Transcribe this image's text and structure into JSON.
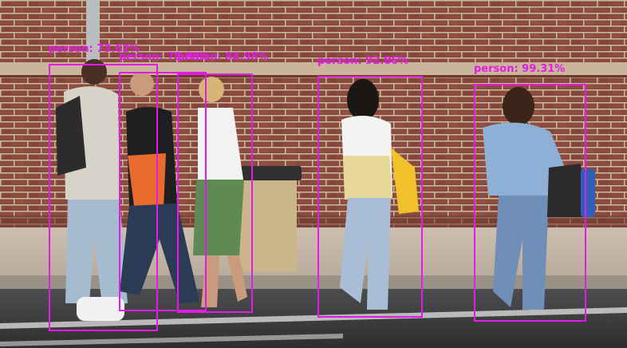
{
  "detections": [
    {
      "label": "person: 73.62%",
      "color": "#e21ce6"
    },
    {
      "label": "person: 78.89%",
      "color": "#e21ce6"
    },
    {
      "label": "person: 84.98%",
      "color": "#e21ce6"
    },
    {
      "label": "person: 92.86%",
      "color": "#e21ce6"
    },
    {
      "label": "person: 99.31%",
      "color": "#e21ce6"
    }
  ]
}
